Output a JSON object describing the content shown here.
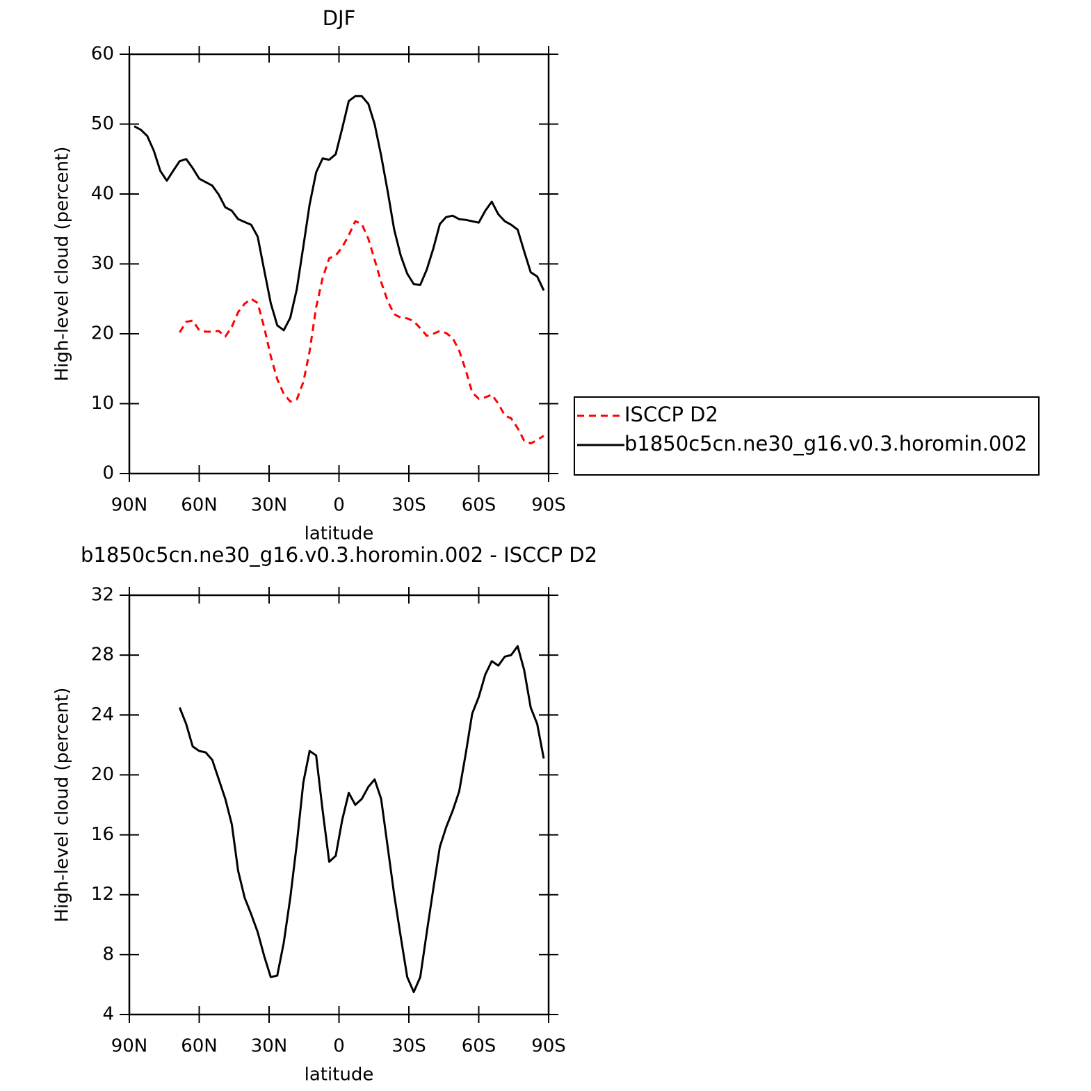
{
  "chart_data": [
    {
      "type": "line",
      "title": "DJF",
      "xlabel": "latitude",
      "ylabel": "High-level cloud (percent)",
      "x": [
        87.9,
        85.1,
        82.3,
        79.5,
        76.7,
        73.9,
        71.2,
        68.4,
        65.6,
        62.8,
        60.0,
        57.2,
        54.4,
        51.6,
        48.8,
        46.0,
        43.3,
        40.5,
        37.7,
        34.9,
        32.1,
        29.3,
        26.5,
        23.7,
        20.9,
        18.1,
        15.3,
        12.6,
        9.8,
        7.0,
        4.2,
        1.4,
        -1.4,
        -4.2,
        -7.0,
        -9.8,
        -12.6,
        -15.3,
        -18.1,
        -20.9,
        -23.7,
        -26.5,
        -29.3,
        -32.1,
        -34.9,
        -37.7,
        -40.5,
        -43.3,
        -46.0,
        -48.8,
        -51.6,
        -54.4,
        -57.2,
        -60.0,
        -62.8,
        -65.6,
        -68.4,
        -71.2,
        -73.9,
        -76.7,
        -79.5,
        -82.3,
        -85.1,
        -87.9
      ],
      "series": [
        {
          "name": "ISCCP D2",
          "color": "#ff0000",
          "linestyle": "dashed",
          "values": [
            null,
            null,
            null,
            null,
            null,
            null,
            null,
            20.2,
            21.7,
            21.9,
            20.5,
            20.3,
            20.3,
            20.4,
            19.6,
            21.0,
            23.1,
            24.3,
            25.0,
            24.4,
            20.9,
            16.8,
            13.5,
            11.4,
            10.3,
            10.6,
            13.1,
            17.5,
            23.8,
            28.0,
            30.8,
            31.2,
            32.4,
            34.1,
            36.1,
            35.7,
            33.6,
            30.6,
            27.4,
            24.7,
            22.8,
            22.3,
            22.2,
            21.8,
            20.8,
            19.7,
            20.0,
            20.4,
            20.1,
            19.4,
            17.6,
            14.8,
            11.6,
            10.7,
            10.9,
            11.3,
            10.0,
            8.3,
            7.9,
            6.5,
            4.7,
            4.3,
            4.8,
            5.4
          ]
        },
        {
          "name": "b1850c5cn.ne30_g16.v0.3.horomin.002",
          "color": "#000000",
          "linestyle": "solid",
          "values": [
            49.7,
            49.2,
            48.3,
            46.2,
            43.3,
            41.9,
            43.3,
            44.7,
            45.0,
            43.7,
            42.2,
            41.7,
            41.2,
            39.9,
            38.1,
            37.6,
            36.4,
            36.0,
            35.6,
            33.9,
            29.1,
            24.4,
            21.2,
            20.5,
            22.3,
            26.4,
            32.5,
            38.5,
            43.1,
            45.1,
            44.9,
            45.7,
            49.4,
            53.3,
            54.0,
            54.0,
            52.9,
            50.0,
            45.5,
            40.4,
            34.9,
            31.2,
            28.6,
            27.1,
            27.0,
            29.2,
            32.2,
            35.7,
            36.7,
            36.9,
            36.4,
            36.3,
            36.1,
            35.9,
            37.6,
            38.9,
            37.1,
            36.1,
            35.6,
            34.9,
            31.8,
            28.8,
            28.2,
            26.2
          ]
        }
      ],
      "xlim": [
        90,
        -90
      ],
      "xticks": [
        {
          "value": 90,
          "label": "90N"
        },
        {
          "value": 60,
          "label": "60N"
        },
        {
          "value": 30,
          "label": "30N"
        },
        0,
        {
          "value": -30,
          "label": "30S"
        },
        {
          "value": -60,
          "label": "60S"
        },
        {
          "value": -90,
          "label": "90S"
        }
      ],
      "ylim": [
        0,
        60
      ],
      "yticks": [
        0,
        10,
        20,
        30,
        40,
        50,
        60
      ],
      "legend": "right"
    },
    {
      "type": "line",
      "title": "b1850c5cn.ne30_g16.v0.3.horomin.002 - ISCCP D2",
      "xlabel": "latitude",
      "ylabel": "High-level cloud (percent)",
      "x": [
        68.4,
        65.6,
        62.8,
        60.0,
        57.2,
        54.4,
        51.6,
        48.8,
        46.0,
        43.3,
        40.5,
        37.7,
        34.9,
        32.1,
        29.3,
        26.5,
        23.7,
        20.9,
        18.1,
        15.3,
        12.6,
        9.8,
        7.0,
        4.2,
        1.4,
        -1.4,
        -4.2,
        -7.0,
        -9.8,
        -12.6,
        -15.3,
        -18.1,
        -20.9,
        -23.7,
        -26.5,
        -29.3,
        -32.1,
        -34.9,
        -37.7,
        -40.5,
        -43.3,
        -46.0,
        -48.8,
        -51.6,
        -54.4,
        -57.2,
        -60.0,
        -62.8,
        -65.6,
        -68.4,
        -71.2,
        -73.9,
        -76.7,
        -79.5,
        -82.3,
        -85.1,
        -87.9
      ],
      "series": [
        {
          "color": "#000000",
          "linestyle": "solid",
          "values": [
            24.5,
            23.4,
            21.9,
            21.6,
            21.5,
            21.0,
            19.7,
            18.4,
            16.7,
            13.6,
            11.8,
            10.7,
            9.5,
            7.9,
            6.5,
            6.6,
            8.8,
            11.8,
            15.4,
            19.5,
            21.6,
            21.3,
            17.6,
            14.2,
            14.6,
            17.0,
            18.8,
            18.0,
            18.4,
            19.2,
            19.7,
            18.4,
            15.2,
            12.0,
            9.2,
            6.5,
            5.5,
            6.5,
            9.5,
            12.4,
            15.2,
            16.5,
            17.6,
            18.9,
            21.4,
            24.1,
            25.2,
            26.7,
            27.6,
            27.3,
            27.9,
            28.0,
            28.6,
            27.0,
            24.5,
            23.4,
            21.1
          ]
        }
      ],
      "xlim": [
        90,
        -90
      ],
      "xticks": [
        {
          "value": 90,
          "label": "90N"
        },
        {
          "value": 60,
          "label": "60N"
        },
        {
          "value": 30,
          "label": "30N"
        },
        0,
        {
          "value": -30,
          "label": "30S"
        },
        {
          "value": -60,
          "label": "60S"
        },
        {
          "value": -90,
          "label": "90S"
        }
      ],
      "ylim": [
        4,
        32
      ],
      "yticks": [
        4,
        8,
        12,
        16,
        20,
        24,
        28,
        32
      ]
    }
  ]
}
